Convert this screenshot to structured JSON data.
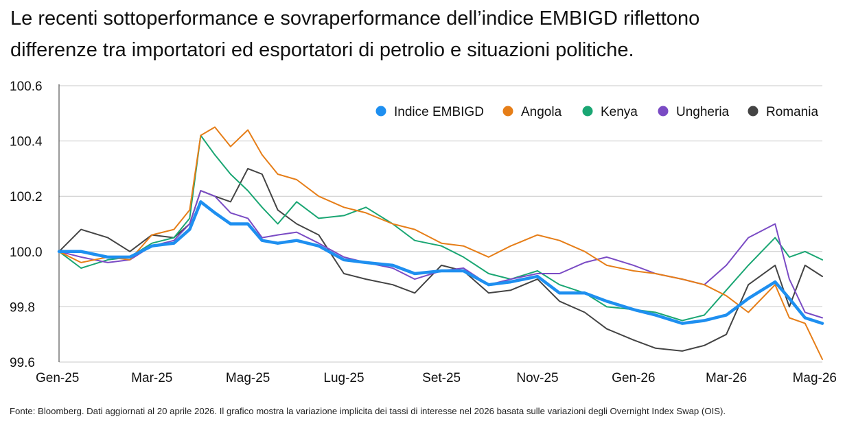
{
  "title_lines": [
    "Le recenti sottoperformance e sovraperformance dell’indice EMBIGD riflettono",
    "differenze tra importatori ed esportatori di petrolio e situazioni politiche."
  ],
  "footnote": "Fonte: Bloomberg. Dati aggiornati al 20 aprile 2026. Il grafico mostra la variazione implicita dei tassi di interesse nel 2026 basata sulle variazioni degli Overnight Index Swap (OIS).",
  "chart_data": {
    "type": "line",
    "xlabel": "",
    "ylabel": "",
    "x_range": [
      "2025-01-01",
      "2026-05-01"
    ],
    "ylim": [
      99.6,
      100.6
    ],
    "yticks": [
      "100.6",
      "100.4",
      "100.2",
      "100.0",
      "99.8",
      "99.6"
    ],
    "xticks": [
      {
        "date": "2025-01-01",
        "label": "Gen-25"
      },
      {
        "date": "2025-03-01",
        "label": "Mar-25"
      },
      {
        "date": "2025-05-01",
        "label": "Mag-25"
      },
      {
        "date": "2025-07-01",
        "label": "Lug-25"
      },
      {
        "date": "2025-09-01",
        "label": "Set-25"
      },
      {
        "date": "2025-11-01",
        "label": "Nov-25"
      },
      {
        "date": "2026-01-01",
        "label": "Gen-26"
      },
      {
        "date": "2026-03-01",
        "label": "Mar-26"
      },
      {
        "date": "2026-05-01",
        "label": "Mag-26"
      }
    ],
    "grid": "horizontal",
    "legend_position": "top-right",
    "series": [
      {
        "name": "Indice EMBIGD",
        "color": "#1e8ff0",
        "points": [
          [
            "2025-01-01",
            100.0
          ],
          [
            "2025-01-15",
            100.0
          ],
          [
            "2025-02-01",
            99.98
          ],
          [
            "2025-02-15",
            99.98
          ],
          [
            "2025-03-01",
            100.02
          ],
          [
            "2025-03-15",
            100.03
          ],
          [
            "2025-03-25",
            100.08
          ],
          [
            "2025-04-01",
            100.18
          ],
          [
            "2025-04-10",
            100.14
          ],
          [
            "2025-04-20",
            100.1
          ],
          [
            "2025-05-01",
            100.1
          ],
          [
            "2025-05-10",
            100.04
          ],
          [
            "2025-05-20",
            100.03
          ],
          [
            "2025-06-01",
            100.04
          ],
          [
            "2025-06-15",
            100.02
          ],
          [
            "2025-07-01",
            99.97
          ],
          [
            "2025-07-15",
            99.96
          ],
          [
            "2025-08-01",
            99.95
          ],
          [
            "2025-08-15",
            99.92
          ],
          [
            "2025-09-01",
            99.93
          ],
          [
            "2025-09-15",
            99.93
          ],
          [
            "2025-10-01",
            99.88
          ],
          [
            "2025-10-15",
            99.89
          ],
          [
            "2025-11-01",
            99.91
          ],
          [
            "2025-11-15",
            99.85
          ],
          [
            "2025-12-01",
            99.85
          ],
          [
            "2025-12-15",
            99.82
          ],
          [
            "2026-01-01",
            99.79
          ],
          [
            "2026-01-15",
            99.77
          ],
          [
            "2026-02-01",
            99.74
          ],
          [
            "2026-02-15",
            99.75
          ],
          [
            "2026-03-01",
            99.77
          ],
          [
            "2026-03-15",
            99.83
          ],
          [
            "2026-04-01",
            99.89
          ],
          [
            "2026-04-10",
            99.83
          ],
          [
            "2026-04-20",
            99.76
          ],
          [
            "2026-05-01",
            99.74
          ]
        ]
      },
      {
        "name": "Angola",
        "color": "#e67e18",
        "points": [
          [
            "2025-01-01",
            100.0
          ],
          [
            "2025-01-15",
            99.96
          ],
          [
            "2025-02-01",
            99.98
          ],
          [
            "2025-02-15",
            99.97
          ],
          [
            "2025-03-01",
            100.06
          ],
          [
            "2025-03-15",
            100.08
          ],
          [
            "2025-03-25",
            100.15
          ],
          [
            "2025-04-01",
            100.42
          ],
          [
            "2025-04-10",
            100.45
          ],
          [
            "2025-04-20",
            100.38
          ],
          [
            "2025-05-01",
            100.44
          ],
          [
            "2025-05-10",
            100.35
          ],
          [
            "2025-05-20",
            100.28
          ],
          [
            "2025-06-01",
            100.26
          ],
          [
            "2025-06-15",
            100.2
          ],
          [
            "2025-07-01",
            100.16
          ],
          [
            "2025-07-15",
            100.14
          ],
          [
            "2025-08-01",
            100.1
          ],
          [
            "2025-08-15",
            100.08
          ],
          [
            "2025-09-01",
            100.03
          ],
          [
            "2025-09-15",
            100.02
          ],
          [
            "2025-10-01",
            99.98
          ],
          [
            "2025-10-15",
            100.02
          ],
          [
            "2025-11-01",
            100.06
          ],
          [
            "2025-11-15",
            100.04
          ],
          [
            "2025-12-01",
            100.0
          ],
          [
            "2025-12-15",
            99.95
          ],
          [
            "2026-01-01",
            99.93
          ],
          [
            "2026-01-15",
            99.92
          ],
          [
            "2026-02-01",
            99.9
          ],
          [
            "2026-02-15",
            99.88
          ],
          [
            "2026-03-01",
            99.84
          ],
          [
            "2026-03-15",
            99.78
          ],
          [
            "2026-04-01",
            99.88
          ],
          [
            "2026-04-10",
            99.76
          ],
          [
            "2026-04-20",
            99.74
          ],
          [
            "2026-05-01",
            99.61
          ]
        ]
      },
      {
        "name": "Kenya",
        "color": "#1aa673",
        "points": [
          [
            "2025-01-01",
            100.0
          ],
          [
            "2025-01-15",
            99.94
          ],
          [
            "2025-02-01",
            99.97
          ],
          [
            "2025-02-15",
            99.98
          ],
          [
            "2025-03-01",
            100.03
          ],
          [
            "2025-03-15",
            100.05
          ],
          [
            "2025-03-25",
            100.12
          ],
          [
            "2025-04-01",
            100.42
          ],
          [
            "2025-04-10",
            100.35
          ],
          [
            "2025-04-20",
            100.28
          ],
          [
            "2025-05-01",
            100.22
          ],
          [
            "2025-05-10",
            100.16
          ],
          [
            "2025-05-20",
            100.1
          ],
          [
            "2025-06-01",
            100.18
          ],
          [
            "2025-06-15",
            100.12
          ],
          [
            "2025-07-01",
            100.13
          ],
          [
            "2025-07-15",
            100.16
          ],
          [
            "2025-08-01",
            100.1
          ],
          [
            "2025-08-15",
            100.04
          ],
          [
            "2025-09-01",
            100.02
          ],
          [
            "2025-09-15",
            99.98
          ],
          [
            "2025-10-01",
            99.92
          ],
          [
            "2025-10-15",
            99.9
          ],
          [
            "2025-11-01",
            99.93
          ],
          [
            "2025-11-15",
            99.88
          ],
          [
            "2025-12-01",
            99.85
          ],
          [
            "2025-12-15",
            99.8
          ],
          [
            "2026-01-01",
            99.79
          ],
          [
            "2026-01-15",
            99.78
          ],
          [
            "2026-02-01",
            99.75
          ],
          [
            "2026-02-15",
            99.77
          ],
          [
            "2026-03-01",
            99.86
          ],
          [
            "2026-03-15",
            99.95
          ],
          [
            "2026-04-01",
            100.05
          ],
          [
            "2026-04-10",
            99.98
          ],
          [
            "2026-04-20",
            100.0
          ],
          [
            "2026-05-01",
            99.97
          ]
        ]
      },
      {
        "name": "Ungheria",
        "color": "#7a4bc4",
        "points": [
          [
            "2025-01-01",
            100.0
          ],
          [
            "2025-01-15",
            99.98
          ],
          [
            "2025-02-01",
            99.96
          ],
          [
            "2025-02-15",
            99.97
          ],
          [
            "2025-03-01",
            100.02
          ],
          [
            "2025-03-15",
            100.04
          ],
          [
            "2025-03-25",
            100.1
          ],
          [
            "2025-04-01",
            100.22
          ],
          [
            "2025-04-10",
            100.2
          ],
          [
            "2025-04-20",
            100.14
          ],
          [
            "2025-05-01",
            100.12
          ],
          [
            "2025-05-10",
            100.05
          ],
          [
            "2025-05-20",
            100.06
          ],
          [
            "2025-06-01",
            100.07
          ],
          [
            "2025-06-15",
            100.03
          ],
          [
            "2025-07-01",
            99.98
          ],
          [
            "2025-07-15",
            99.96
          ],
          [
            "2025-08-01",
            99.94
          ],
          [
            "2025-08-15",
            99.9
          ],
          [
            "2025-09-01",
            99.93
          ],
          [
            "2025-09-15",
            99.94
          ],
          [
            "2025-10-01",
            99.88
          ],
          [
            "2025-10-15",
            99.9
          ],
          [
            "2025-11-01",
            99.92
          ],
          [
            "2025-11-15",
            99.92
          ],
          [
            "2025-12-01",
            99.96
          ],
          [
            "2025-12-15",
            99.98
          ],
          [
            "2026-01-01",
            99.95
          ],
          [
            "2026-01-15",
            99.92
          ],
          [
            "2026-02-01",
            99.9
          ],
          [
            "2026-02-15",
            99.88
          ],
          [
            "2026-03-01",
            99.95
          ],
          [
            "2026-03-15",
            100.05
          ],
          [
            "2026-04-01",
            100.1
          ],
          [
            "2026-04-10",
            99.9
          ],
          [
            "2026-04-20",
            99.78
          ],
          [
            "2026-05-01",
            99.76
          ]
        ]
      },
      {
        "name": "Romania",
        "color": "#444444",
        "points": [
          [
            "2025-01-01",
            100.0
          ],
          [
            "2025-01-15",
            100.08
          ],
          [
            "2025-02-01",
            100.05
          ],
          [
            "2025-02-15",
            100.0
          ],
          [
            "2025-03-01",
            100.06
          ],
          [
            "2025-03-15",
            100.05
          ],
          [
            "2025-03-25",
            100.1
          ],
          [
            "2025-04-01",
            100.22
          ],
          [
            "2025-04-10",
            100.2
          ],
          [
            "2025-04-20",
            100.18
          ],
          [
            "2025-05-01",
            100.3
          ],
          [
            "2025-05-10",
            100.28
          ],
          [
            "2025-05-20",
            100.15
          ],
          [
            "2025-06-01",
            100.1
          ],
          [
            "2025-06-15",
            100.06
          ],
          [
            "2025-07-01",
            99.92
          ],
          [
            "2025-07-15",
            99.9
          ],
          [
            "2025-08-01",
            99.88
          ],
          [
            "2025-08-15",
            99.85
          ],
          [
            "2025-09-01",
            99.95
          ],
          [
            "2025-09-15",
            99.93
          ],
          [
            "2025-10-01",
            99.85
          ],
          [
            "2025-10-15",
            99.86
          ],
          [
            "2025-11-01",
            99.9
          ],
          [
            "2025-11-15",
            99.82
          ],
          [
            "2025-12-01",
            99.78
          ],
          [
            "2025-12-15",
            99.72
          ],
          [
            "2026-01-01",
            99.68
          ],
          [
            "2026-01-15",
            99.65
          ],
          [
            "2026-02-01",
            99.64
          ],
          [
            "2026-02-15",
            99.66
          ],
          [
            "2026-03-01",
            99.7
          ],
          [
            "2026-03-15",
            99.88
          ],
          [
            "2026-04-01",
            99.95
          ],
          [
            "2026-04-10",
            99.8
          ],
          [
            "2026-04-20",
            99.95
          ],
          [
            "2026-05-01",
            99.91
          ]
        ]
      }
    ]
  }
}
